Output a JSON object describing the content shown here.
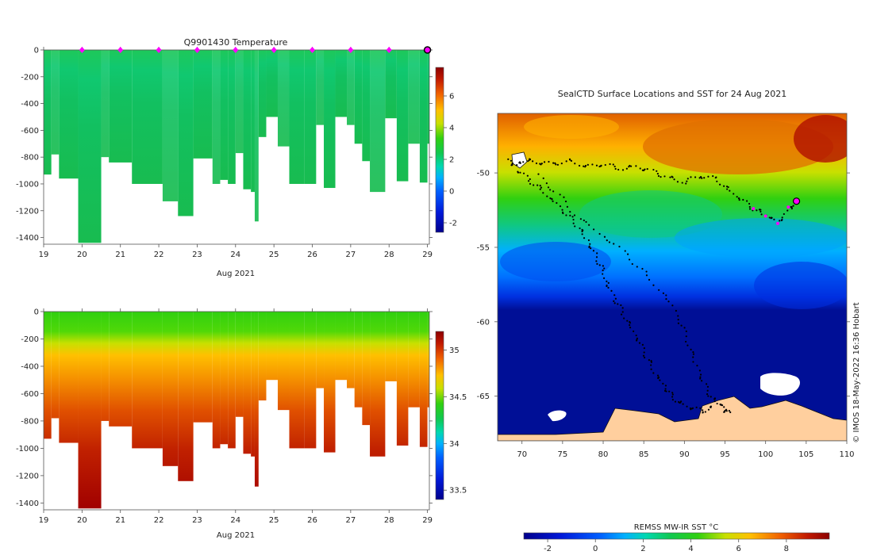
{
  "chart_data": [
    {
      "type": "heatmap",
      "title": "Q9901430  Temperature",
      "xlabel": "Aug 2021",
      "ylabel": "",
      "x_ticks": [
        "19",
        "20",
        "21",
        "22",
        "23",
        "24",
        "25",
        "26",
        "27",
        "28",
        "29"
      ],
      "x_range": [
        19,
        29.05
      ],
      "y_ticks": [
        "0",
        "-200",
        "-400",
        "-600",
        "-800",
        "-1000",
        "-1200",
        "-1400"
      ],
      "ylim": [
        -1450,
        0
      ],
      "colorbar": {
        "range": [
          -2.6,
          7.8
        ],
        "ticks": [
          "-2",
          "0",
          "2",
          "4",
          "6"
        ]
      },
      "cast_markers_x": [
        20,
        21,
        22,
        23,
        24,
        25,
        26,
        27,
        28
      ],
      "latest_marker_x": 29
    },
    {
      "type": "heatmap",
      "title": "",
      "xlabel": "Aug 2021",
      "ylabel": "",
      "x_ticks": [
        "19",
        "20",
        "21",
        "22",
        "23",
        "24",
        "25",
        "26",
        "27",
        "28",
        "29"
      ],
      "x_range": [
        19,
        29.05
      ],
      "y_ticks": [
        "0",
        "-200",
        "-400",
        "-600",
        "-800",
        "-1000",
        "-1200",
        "-1400"
      ],
      "ylim": [
        -1450,
        0
      ],
      "colorbar": {
        "range": [
          33.4,
          35.2
        ],
        "ticks": [
          "33.5",
          "34",
          "34.5",
          "35"
        ]
      }
    },
    {
      "type": "heatmap",
      "title": "SealCTD Surface Locations and SST for 24 Aug 2021",
      "xlabel": "",
      "ylabel": "",
      "x_ticks": [
        "70",
        "75",
        "80",
        "85",
        "90",
        "95",
        "100",
        "105",
        "110"
      ],
      "x_range": [
        67,
        110
      ],
      "y_ticks": [
        "-50",
        "-55",
        "-60",
        "-65"
      ],
      "ylim": [
        -68,
        -46
      ],
      "colorbar_label": "REMSS MW-IR SST °C",
      "colorbar": {
        "range": [
          -3,
          9.8
        ],
        "ticks": [
          "-2",
          "0",
          "2",
          "4",
          "6",
          "8"
        ]
      },
      "latest_position": [
        103.8,
        -51.9
      ]
    }
  ],
  "profiles": [
    {
      "x0": 19.0,
      "x1": 19.2,
      "maxd": 930
    },
    {
      "x0": 19.2,
      "x1": 19.4,
      "maxd": 780
    },
    {
      "x0": 19.4,
      "x1": 19.9,
      "maxd": 960
    },
    {
      "x0": 19.9,
      "x1": 20.5,
      "maxd": 1440
    },
    {
      "x0": 20.5,
      "x1": 20.7,
      "maxd": 800
    },
    {
      "x0": 20.7,
      "x1": 21.3,
      "maxd": 840
    },
    {
      "x0": 21.3,
      "x1": 22.1,
      "maxd": 1000
    },
    {
      "x0": 22.1,
      "x1": 22.5,
      "maxd": 1130
    },
    {
      "x0": 22.5,
      "x1": 22.9,
      "maxd": 1240
    },
    {
      "x0": 22.9,
      "x1": 23.4,
      "maxd": 810
    },
    {
      "x0": 23.4,
      "x1": 23.6,
      "maxd": 1000
    },
    {
      "x0": 23.6,
      "x1": 23.8,
      "maxd": 970
    },
    {
      "x0": 23.8,
      "x1": 24.0,
      "maxd": 1000
    },
    {
      "x0": 24.0,
      "x1": 24.2,
      "maxd": 770
    },
    {
      "x0": 24.2,
      "x1": 24.4,
      "maxd": 1040
    },
    {
      "x0": 24.4,
      "x1": 24.5,
      "maxd": 1060
    },
    {
      "x0": 24.5,
      "x1": 24.6,
      "maxd": 1280
    },
    {
      "x0": 24.6,
      "x1": 24.8,
      "maxd": 650
    },
    {
      "x0": 24.8,
      "x1": 25.1,
      "maxd": 500
    },
    {
      "x0": 25.1,
      "x1": 25.4,
      "maxd": 720
    },
    {
      "x0": 25.4,
      "x1": 25.8,
      "maxd": 1000
    },
    {
      "x0": 25.8,
      "x1": 26.1,
      "maxd": 1000
    },
    {
      "x0": 26.1,
      "x1": 26.3,
      "maxd": 560
    },
    {
      "x0": 26.3,
      "x1": 26.6,
      "maxd": 1030
    },
    {
      "x0": 26.6,
      "x1": 26.9,
      "maxd": 500
    },
    {
      "x0": 26.9,
      "x1": 27.1,
      "maxd": 560
    },
    {
      "x0": 27.1,
      "x1": 27.3,
      "maxd": 700
    },
    {
      "x0": 27.3,
      "x1": 27.5,
      "maxd": 830
    },
    {
      "x0": 27.5,
      "x1": 27.9,
      "maxd": 1060
    },
    {
      "x0": 27.9,
      "x1": 28.2,
      "maxd": 510
    },
    {
      "x0": 28.2,
      "x1": 28.5,
      "maxd": 980
    },
    {
      "x0": 28.5,
      "x1": 28.8,
      "maxd": 700
    },
    {
      "x0": 28.8,
      "x1": 29.0,
      "maxd": 990
    },
    {
      "x0": 29.0,
      "x1": 29.05,
      "maxd": 700
    }
  ],
  "track_points": [
    [
      68.3,
      -49.2
    ],
    [
      69.2,
      -49.5
    ],
    [
      70.5,
      -49.1
    ],
    [
      72,
      -49.3
    ],
    [
      74,
      -49.4
    ],
    [
      76,
      -49.2
    ],
    [
      78,
      -49.6
    ],
    [
      80,
      -49.4
    ],
    [
      82,
      -49.7
    ],
    [
      84,
      -49.6
    ],
    [
      86,
      -49.9
    ],
    [
      88,
      -50.3
    ],
    [
      90,
      -50.6
    ],
    [
      92,
      -50.2
    ],
    [
      94,
      -50.4
    ],
    [
      95.5,
      -51.2
    ],
    [
      97,
      -51.8
    ],
    [
      98.5,
      -52.4
    ],
    [
      100,
      -52.8
    ],
    [
      101.5,
      -53.3
    ],
    [
      103,
      -52.5
    ],
    [
      103.8,
      -51.9
    ],
    [
      69.5,
      -49.8
    ],
    [
      71,
      -50.5
    ],
    [
      72.5,
      -51.2
    ],
    [
      74,
      -52
    ],
    [
      75.5,
      -52.8
    ],
    [
      77,
      -53.6
    ],
    [
      78,
      -54.5
    ],
    [
      79,
      -55.5
    ],
    [
      80,
      -56.5
    ],
    [
      80.5,
      -57.5
    ],
    [
      81.5,
      -58.5
    ],
    [
      82.5,
      -59.5
    ],
    [
      83.5,
      -60.5
    ],
    [
      84.5,
      -61.5
    ],
    [
      85.5,
      -62.5
    ],
    [
      86.5,
      -63.5
    ],
    [
      87.5,
      -64.3
    ],
    [
      88.5,
      -65
    ],
    [
      89.5,
      -65.5
    ],
    [
      91,
      -65.8
    ],
    [
      92.5,
      -66
    ],
    [
      93.5,
      -65.7
    ],
    [
      72,
      -50.2
    ],
    [
      74.5,
      -51.5
    ],
    [
      77,
      -53
    ],
    [
      80,
      -54.2
    ],
    [
      83,
      -55.5
    ],
    [
      85.5,
      -57
    ],
    [
      88,
      -58.5
    ],
    [
      89.5,
      -60
    ],
    [
      90.5,
      -61.5
    ],
    [
      91.5,
      -63
    ],
    [
      92.5,
      -64.3
    ],
    [
      93.5,
      -65.2
    ],
    [
      94.5,
      -65.5
    ],
    [
      95,
      -65.9
    ],
    [
      95.5,
      -66.2
    ]
  ],
  "magenta_points": [
    [
      98.5,
      -52.4
    ],
    [
      100,
      -52.9
    ],
    [
      101.5,
      -53.4
    ],
    [
      102.8,
      -52.3
    ]
  ],
  "watermark": "© IMOS 18-May-2022 16:36 Hobart",
  "colors": {
    "land": "#ffcf9e",
    "ice": "#ffffff",
    "deep_ocean": "#000f96",
    "marker": "#ff00ff",
    "track": "#000000"
  }
}
